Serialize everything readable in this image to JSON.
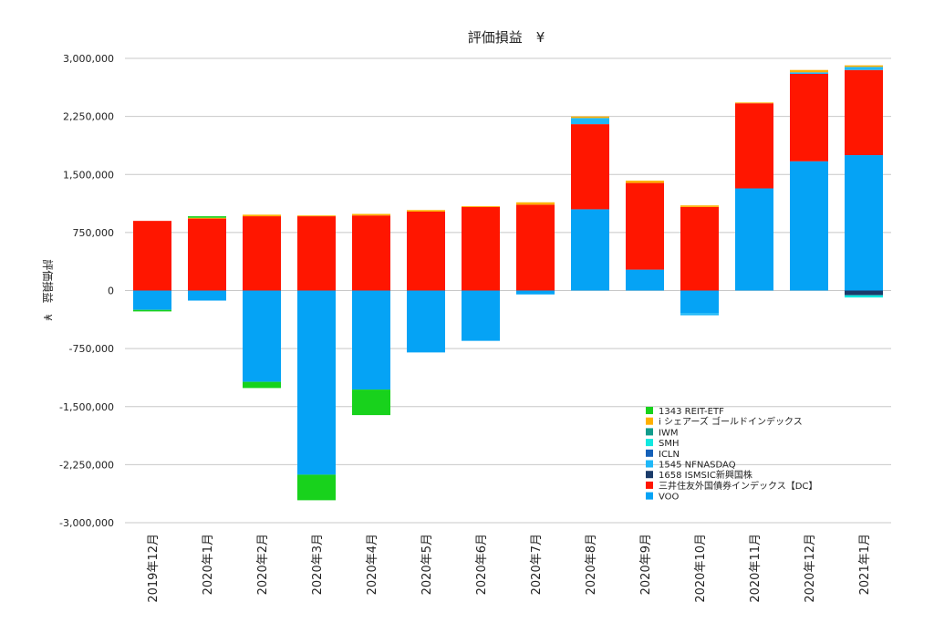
{
  "chart_data": {
    "type": "bar",
    "stacked": true,
    "title": "評価損益　¥",
    "ylabel": "評価損益　¥",
    "xlabel": "",
    "ylim": [
      -3000000,
      3000000
    ],
    "yticks": [
      3000000,
      2250000,
      1500000,
      750000,
      0,
      -750000,
      -1500000,
      -2250000,
      -3000000
    ],
    "ytick_labels": [
      "3,000,000",
      "2,250,000",
      "1,500,000",
      "750,000",
      "0",
      "-750,000",
      "-1,500,000",
      "-2,250,000",
      "-3,000,000"
    ],
    "grid": true,
    "legend_position": "bottom-right",
    "categories": [
      "2019年12月",
      "2020年1月",
      "2020年2月",
      "2020年3月",
      "2020年4月",
      "2020年5月",
      "2020年6月",
      "2020年7月",
      "2020年8月",
      "2020年9月",
      "2020年10月",
      "2020年11月",
      "2020年12月",
      "2021年1月"
    ],
    "series": [
      {
        "name": "VOO",
        "color": "#05a3f5",
        "values": [
          -250000,
          -130000,
          -1180000,
          -2380000,
          -1280000,
          -800000,
          -650000,
          -50000,
          1050000,
          270000,
          -290000,
          1320000,
          1670000,
          1750000
        ]
      },
      {
        "name": "三井住友外国債券インデックス【DC】",
        "color": "#ff1600",
        "values": [
          900000,
          930000,
          960000,
          960000,
          970000,
          1020000,
          1080000,
          1110000,
          1100000,
          1120000,
          1080000,
          1100000,
          1130000,
          1100000
        ]
      },
      {
        "name": "1658 ISMSIC新興国株",
        "color": "#1b3b6a",
        "values": [
          0,
          0,
          0,
          0,
          0,
          0,
          0,
          0,
          0,
          0,
          0,
          0,
          0,
          -60000
        ]
      },
      {
        "name": "1545 NFNASDAQ",
        "color": "#1fb8f8",
        "values": [
          0,
          0,
          0,
          0,
          0,
          0,
          0,
          0,
          80000,
          0,
          -30000,
          0,
          20000,
          40000
        ]
      },
      {
        "name": "ICLN",
        "color": "#1460b8",
        "values": [
          0,
          0,
          0,
          0,
          0,
          0,
          0,
          0,
          0,
          0,
          0,
          0,
          0,
          0
        ]
      },
      {
        "name": "SMH",
        "color": "#12e8e0",
        "values": [
          0,
          0,
          0,
          0,
          0,
          0,
          0,
          0,
          0,
          0,
          0,
          0,
          0,
          -30000
        ]
      },
      {
        "name": "IWM",
        "color": "#129c8c",
        "values": [
          0,
          0,
          0,
          0,
          0,
          0,
          0,
          0,
          0,
          0,
          0,
          0,
          0,
          0
        ]
      },
      {
        "name": "i シェアーズ ゴールドインデックス",
        "color": "#ffb000",
        "values": [
          0,
          10000,
          20000,
          10000,
          20000,
          20000,
          10000,
          30000,
          20000,
          30000,
          20000,
          10000,
          30000,
          20000
        ]
      },
      {
        "name": "1343 REIT-ETF",
        "color": "#18d21c",
        "values": [
          -20000,
          20000,
          -80000,
          -330000,
          -330000,
          0,
          0,
          0,
          0,
          0,
          0,
          0,
          0,
          0
        ]
      }
    ],
    "legend_order": [
      "1343 REIT-ETF",
      "i シェアーズ ゴールドインデックス",
      "IWM",
      "SMH",
      "ICLN",
      "1545 NFNASDAQ",
      "1658 ISMSIC新興国株",
      "三井住友外国債券インデックス【DC】",
      "VOO"
    ]
  }
}
